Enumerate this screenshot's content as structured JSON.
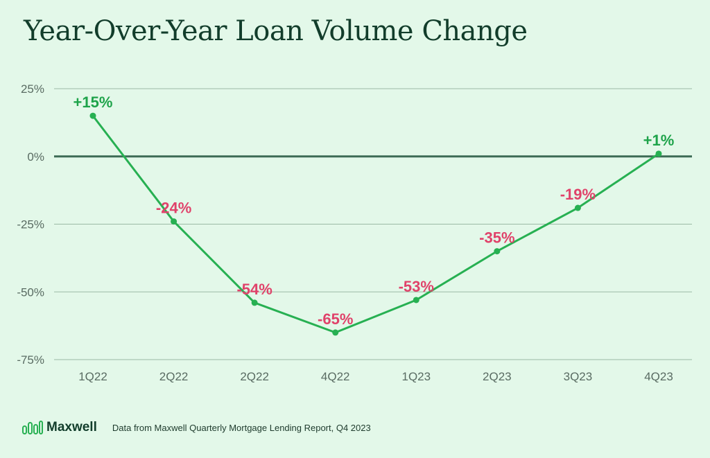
{
  "title": "Year-Over-Year Loan Volume Change",
  "footer": {
    "brand": "Maxwell",
    "source": "Data from Maxwell Quarterly Mortgage Lending Report, Q4 2023"
  },
  "colors": {
    "line": "#27b052",
    "positive_label": "#1ea34a",
    "negative_label": "#e0426a",
    "grid": "#9bb9a5",
    "zero_line": "#3d6b55",
    "tick_text": "#596b62"
  },
  "chart_data": {
    "type": "line",
    "categories": [
      "1Q22",
      "2Q22",
      "2Q22",
      "4Q22",
      "1Q23",
      "2Q23",
      "3Q23",
      "4Q23"
    ],
    "values": [
      15,
      -24,
      -54,
      -65,
      -53,
      -35,
      -19,
      1
    ],
    "data_labels": [
      "+15%",
      "-24%",
      "-54%",
      "-65%",
      "-53%",
      "-35%",
      "-19%",
      "+1%"
    ],
    "yticks": [
      25,
      0,
      -25,
      -50,
      -75
    ],
    "ytick_labels": [
      "25%",
      "0%",
      "-25%",
      "-50%",
      "-75%"
    ],
    "ylim": [
      -75,
      25
    ],
    "title": "Year-Over-Year Loan Volume Change",
    "xlabel": "",
    "ylabel": "",
    "grid": true,
    "legend": "none"
  }
}
